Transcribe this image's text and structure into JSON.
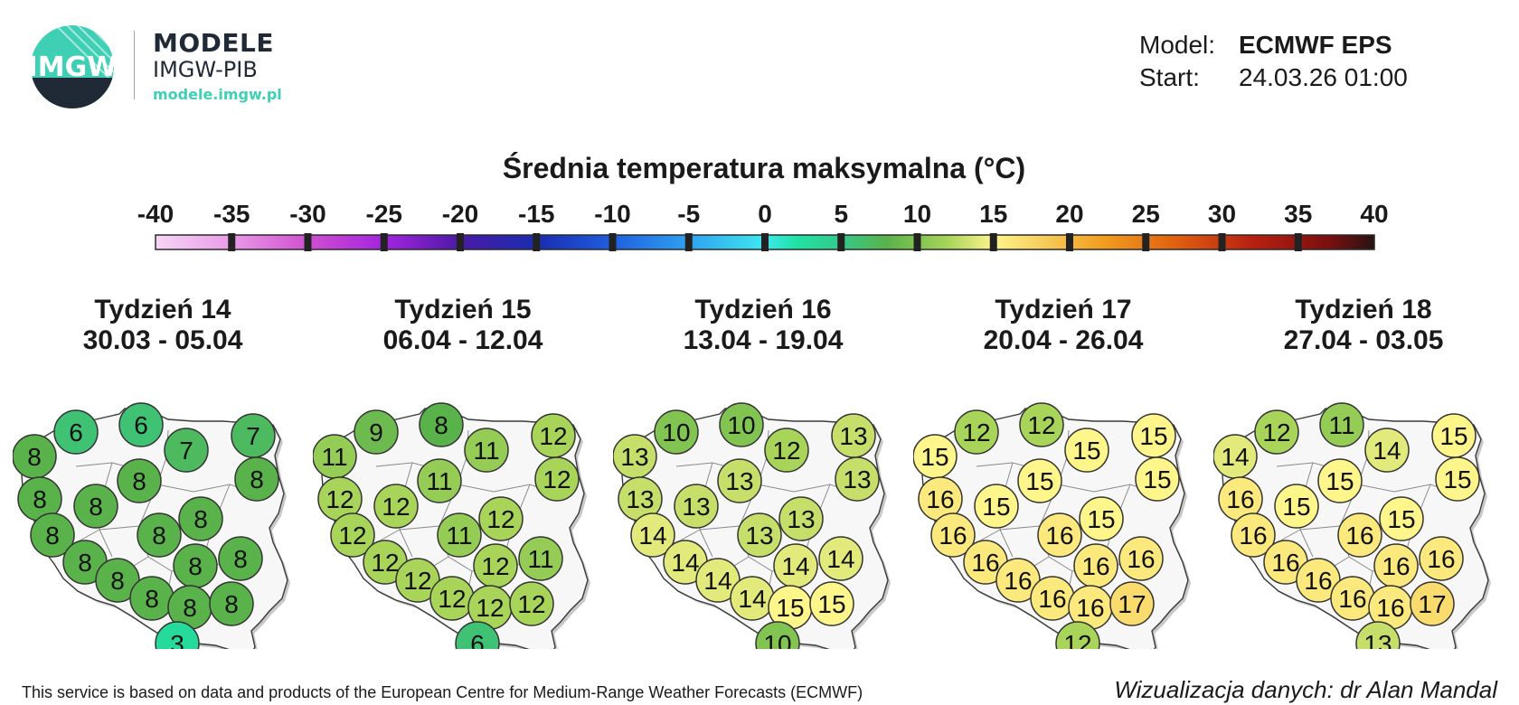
{
  "header": {
    "logo_text": "IMGW",
    "brand_title": "MODELE",
    "brand_sub": "IMGW-PIB",
    "brand_url": "modele.imgw.pl",
    "model_label": "Model:",
    "model_value": "ECMWF EPS",
    "start_label": "Start:",
    "start_value": "24.03.26 01:00"
  },
  "scale": {
    "title": "Średnia temperatura maksymalna (°C)",
    "ticks": [
      "-40",
      "-35",
      "-30",
      "-25",
      "-20",
      "-15",
      "-10",
      "-5",
      "0",
      "5",
      "10",
      "15",
      "20",
      "25",
      "30",
      "35",
      "40"
    ],
    "tick_values": [
      -40,
      -35,
      -30,
      -25,
      -20,
      -15,
      -10,
      -5,
      0,
      5,
      10,
      15,
      20,
      25,
      30,
      35,
      40
    ],
    "color_stops": [
      {
        "v": -40,
        "c": "#f5d6f5"
      },
      {
        "v": -35,
        "c": "#ea9ae8"
      },
      {
        "v": -30,
        "c": "#d04fd0"
      },
      {
        "v": -25,
        "c": "#a424e0"
      },
      {
        "v": -20,
        "c": "#4b1aa6"
      },
      {
        "v": -15,
        "c": "#1a2cb0"
      },
      {
        "v": -10,
        "c": "#1f5fe0"
      },
      {
        "v": -5,
        "c": "#2fa2f0"
      },
      {
        "v": 0,
        "c": "#3ee8f0"
      },
      {
        "v": 2,
        "c": "#1fe3a5"
      },
      {
        "v": 5,
        "c": "#34c98a"
      },
      {
        "v": 8,
        "c": "#59b34a"
      },
      {
        "v": 12,
        "c": "#a8d45a"
      },
      {
        "v": 15,
        "c": "#fef58b"
      },
      {
        "v": 18,
        "c": "#f8d060"
      },
      {
        "v": 22,
        "c": "#f2a020"
      },
      {
        "v": 27,
        "c": "#e06010"
      },
      {
        "v": 32,
        "c": "#b82010"
      },
      {
        "v": 37,
        "c": "#7a1010"
      },
      {
        "v": 40,
        "c": "#2a1212"
      }
    ]
  },
  "weeks": [
    {
      "title": "Tydzień 14",
      "dates": "30.03 - 05.04",
      "values": [
        6,
        6,
        7,
        8,
        7,
        8,
        8,
        8,
        8,
        8,
        8,
        8,
        8,
        8,
        8,
        8,
        8,
        8,
        8,
        3
      ]
    },
    {
      "title": "Tydzień 15",
      "dates": "06.04 - 12.04",
      "values": [
        9,
        8,
        11,
        11,
        12,
        12,
        12,
        12,
        11,
        12,
        12,
        11,
        11,
        12,
        12,
        12,
        12,
        12,
        12,
        6
      ]
    },
    {
      "title": "Tydzień 16",
      "dates": "13.04 - 19.04",
      "values": [
        10,
        10,
        12,
        13,
        13,
        13,
        13,
        13,
        13,
        14,
        13,
        13,
        14,
        14,
        14,
        14,
        14,
        15,
        15,
        10
      ]
    },
    {
      "title": "Tydzień 17",
      "dates": "20.04 - 26.04",
      "values": [
        12,
        12,
        15,
        15,
        15,
        16,
        15,
        15,
        15,
        16,
        15,
        16,
        16,
        16,
        16,
        16,
        16,
        16,
        17,
        12
      ]
    },
    {
      "title": "Tydzień 18",
      "dates": "27.04 - 03.05",
      "values": [
        12,
        11,
        14,
        14,
        15,
        16,
        15,
        15,
        15,
        16,
        15,
        16,
        16,
        16,
        16,
        16,
        16,
        16,
        17,
        13
      ]
    }
  ],
  "footer": {
    "attribution": "This service is based on data and products of the European Centre for Medium-Range Weather Forecasts (ECMWF)",
    "credit": "Wizualizacja danych: dr Alan Mandal"
  }
}
